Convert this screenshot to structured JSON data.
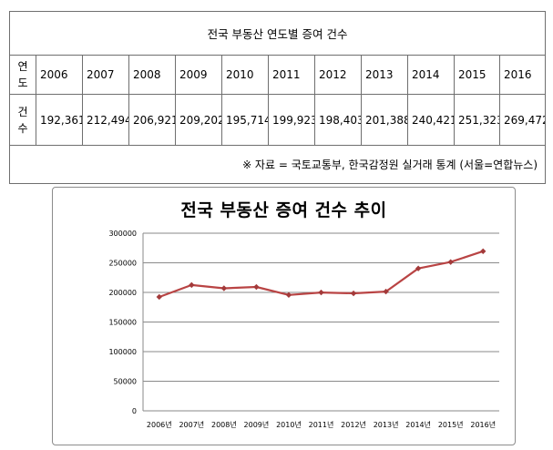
{
  "table": {
    "title": "전국 부동산 연도별 증여 건수",
    "row_year_header": [
      "연",
      "도"
    ],
    "row_count_header": [
      "건",
      "수"
    ],
    "years": [
      "2006",
      "2007",
      "2008",
      "2009",
      "2010",
      "2011",
      "2012",
      "2013",
      "2014",
      "2015",
      "2016"
    ],
    "counts": [
      "192,361",
      "212,494",
      "206,921",
      "209,202",
      "195,714",
      "199,923",
      "198,403",
      "201,388",
      "240,421",
      "251,323",
      "269,472"
    ],
    "note": "※ 자료 = 국토교통부, 한국감정원 실거래 통계 (서울=연합뉴스)"
  },
  "chart_data": {
    "type": "line",
    "title": "전국 부동산 증여 건수 추이",
    "categories": [
      "2006년",
      "2007년",
      "2008년",
      "2009년",
      "2010년",
      "2011년",
      "2012년",
      "2013년",
      "2014년",
      "2015년",
      "2016년"
    ],
    "series": [
      {
        "values": [
          192361,
          212494,
          206921,
          209202,
          195714,
          199923,
          198403,
          201388,
          240421,
          251323,
          269472
        ]
      }
    ],
    "ylim": [
      0,
      300000
    ],
    "yticks": [
      "0",
      "50000",
      "100000",
      "150000",
      "200000",
      "250000",
      "300000"
    ],
    "grid": true,
    "legend": "none",
    "line_color": "#b94444",
    "marker_color": "#a33a3a"
  }
}
